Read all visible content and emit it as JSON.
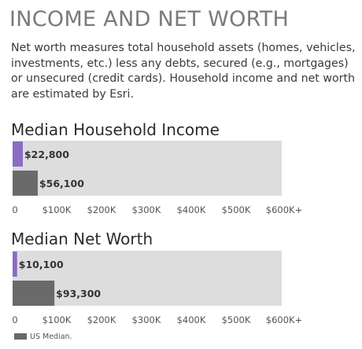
{
  "title": "INCOME AND NET WORTH",
  "description": "Net worth measures total household assets (homes, vehicles, investments, etc.) less any debts, secured (e.g., mortgages) or unsecured (credit cards). Household income and net worth are estimated by Esri.",
  "legend": {
    "label": "US Median."
  },
  "colors": {
    "area": "#8a6cc4",
    "us": "#6a6a6a",
    "track": "#dddddd",
    "label": "#333333",
    "tick": "#555555"
  },
  "chart_data": [
    {
      "type": "bar",
      "title": "Median Household Income",
      "series": [
        {
          "name": "",
          "values": [
            22800
          ],
          "labels": [
            "$22,800"
          ]
        },
        {
          "name": "US Median.",
          "values": [
            56100
          ],
          "labels": [
            "$56,100"
          ]
        }
      ],
      "xlim": [
        0,
        600000
      ],
      "ticks": [
        "0",
        "$100K",
        "$200K",
        "$300K",
        "$400K",
        "$500K",
        "$600K+"
      ]
    },
    {
      "type": "bar",
      "title": "Median Net Worth",
      "series": [
        {
          "name": "",
          "values": [
            10100
          ],
          "labels": [
            "$10,100"
          ]
        },
        {
          "name": "US Median.",
          "values": [
            93300
          ],
          "labels": [
            "$93,300"
          ]
        }
      ],
      "xlim": [
        0,
        600000
      ],
      "ticks": [
        "0",
        "$100K",
        "$200K",
        "$300K",
        "$400K",
        "$500K",
        "$600K+"
      ]
    }
  ]
}
